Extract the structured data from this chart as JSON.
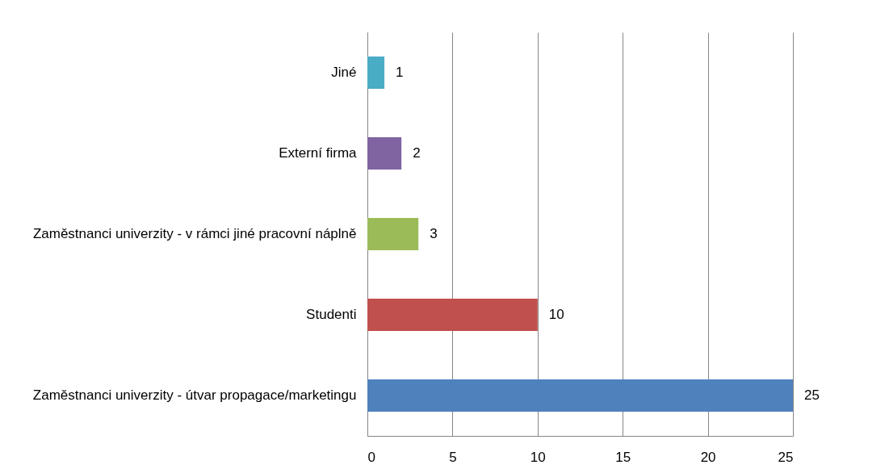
{
  "chart_data": {
    "type": "bar",
    "orientation": "horizontal",
    "categories": [
      "Jiné",
      "Externí firma",
      "Zaměstnanci univerzity - v rámci jiné pracovní náplně",
      "Studenti",
      "Zaměstnanci univerzity - útvar propagace/marketingu"
    ],
    "values": [
      1,
      2,
      3,
      10,
      25
    ],
    "colors": [
      "#4bacc6",
      "#8064a2",
      "#9bbb59",
      "#c0504d",
      "#4f81bd"
    ],
    "xlim": [
      0,
      25
    ],
    "xticks": [
      0,
      5,
      10,
      15,
      20,
      25
    ],
    "grid": "x",
    "data_labels": true
  }
}
